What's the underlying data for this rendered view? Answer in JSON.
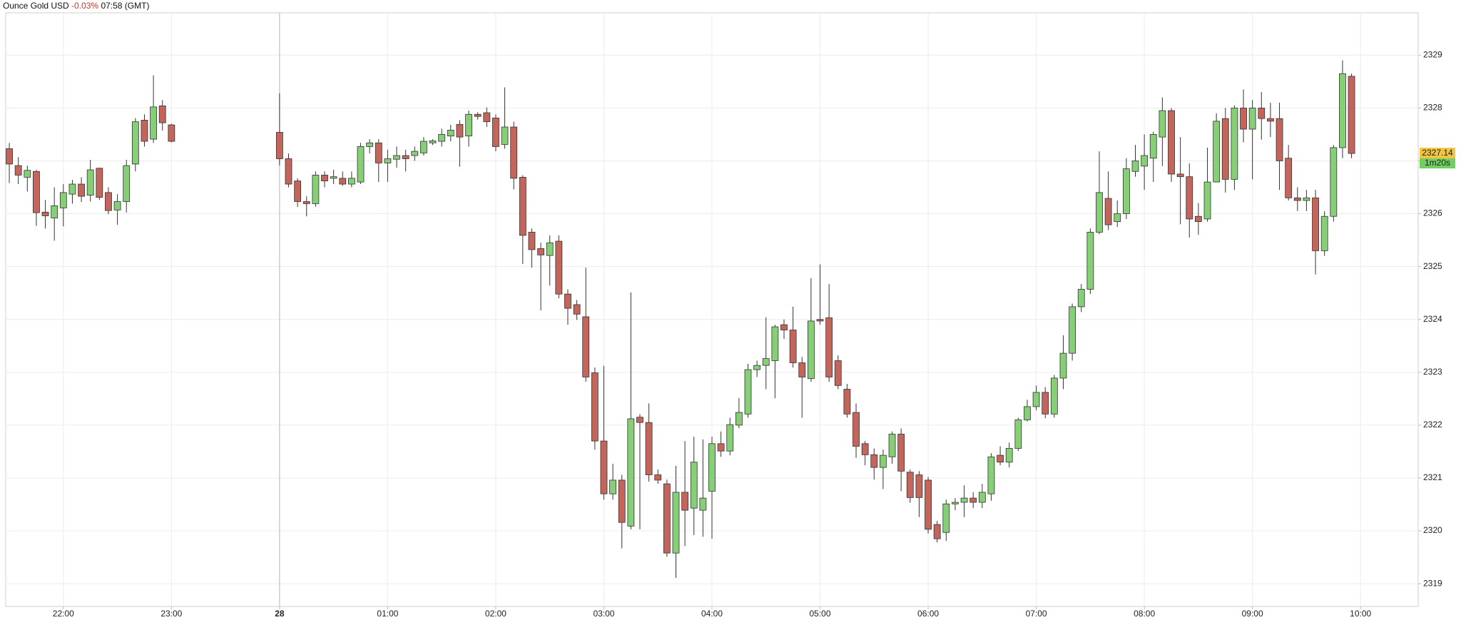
{
  "chart_data": {
    "type": "candlestick",
    "title": "Ounce Gold USD",
    "change": "-0.03%",
    "time": "07:58 (GMT)",
    "up_color": "#86cf76",
    "down_color": "#c4655c",
    "grid": true,
    "xlim": [
      "21:28",
      "10:32"
    ],
    "xticks": [
      "22:00",
      "23:00",
      {
        "value": "00:00",
        "label": "28"
      },
      "01:00",
      "02:00",
      "03:00",
      "04:00",
      "05:00",
      "06:00",
      "07:00",
      "08:00",
      "09:00",
      "10:00"
    ],
    "ylim": [
      2318.57,
      2329.8
    ],
    "yticks": [
      2319,
      2320,
      2321,
      2322,
      2323,
      2324,
      2325,
      2326,
      2327,
      2328,
      2329
    ],
    "last_price": 2327.14,
    "countdown": "1m20s",
    "x": [
      "21:30",
      "21:35",
      "21:40",
      "21:45",
      "21:50",
      "21:55",
      "22:00",
      "22:05",
      "22:10",
      "22:15",
      "22:20",
      "22:25",
      "22:30",
      "22:35",
      "22:40",
      "22:45",
      "22:50",
      "22:55",
      "23:00",
      "00:00",
      "00:05",
      "00:10",
      "00:15",
      "00:20",
      "00:25",
      "00:30",
      "00:35",
      "00:40",
      "00:45",
      "00:50",
      "00:55",
      "01:00",
      "01:05",
      "01:10",
      "01:15",
      "01:20",
      "01:25",
      "01:30",
      "01:35",
      "01:40",
      "01:45",
      "01:50",
      "01:55",
      "02:00",
      "02:05",
      "02:10",
      "02:15",
      "02:20",
      "02:25",
      "02:30",
      "02:35",
      "02:40",
      "02:45",
      "02:50",
      "02:55",
      "03:00",
      "03:05",
      "03:10",
      "03:15",
      "03:20",
      "03:25",
      "03:30",
      "03:35",
      "03:40",
      "03:45",
      "03:50",
      "03:55",
      "04:00",
      "04:05",
      "04:10",
      "04:15",
      "04:20",
      "04:25",
      "04:30",
      "04:35",
      "04:40",
      "04:45",
      "04:50",
      "04:55",
      "05:00",
      "05:05",
      "05:10",
      "05:15",
      "05:20",
      "05:25",
      "05:30",
      "05:35",
      "05:40",
      "05:45",
      "05:50",
      "05:55",
      "06:00",
      "06:05",
      "06:10",
      "06:15",
      "06:20",
      "06:25",
      "06:30",
      "06:35",
      "06:40",
      "06:45",
      "06:50",
      "06:55",
      "07:00",
      "07:05",
      "07:10",
      "07:15",
      "07:20",
      "07:25",
      "07:30",
      "07:35",
      "07:40",
      "07:45",
      "07:50",
      "07:55",
      "08:00",
      "08:05",
      "08:10",
      "08:15",
      "08:20",
      "08:25",
      "08:30",
      "08:35",
      "08:40",
      "08:45",
      "08:50",
      "08:55",
      "09:00",
      "09:05",
      "09:10",
      "09:15",
      "09:20",
      "09:25",
      "09:30",
      "09:35",
      "09:40",
      "09:45",
      "09:50",
      "09:55"
    ],
    "open": [
      2327.23,
      2326.91,
      2326.69,
      2326.8,
      2326.03,
      2325.92,
      2326.11,
      2326.37,
      2326.56,
      2326.35,
      2326.86,
      2326.4,
      2326.07,
      2326.23,
      2326.94,
      2327.77,
      2327.41,
      2328.04,
      2327.68,
      2327.54,
      2327.04,
      2326.62,
      2326.23,
      2326.19,
      2326.73,
      2326.67,
      2326.67,
      2326.56,
      2326.6,
      2327.27,
      2327.34,
      2326.96,
      2327.03,
      2327.1,
      2327.1,
      2327.15,
      2327.34,
      2327.37,
      2327.47,
      2327.69,
      2327.47,
      2327.88,
      2327.91,
      2327.81,
      2327.31,
      2327.64,
      2326.69,
      2325.65,
      2325.34,
      2325.21,
      2325.48,
      2324.48,
      2324.28,
      2324.05,
      2322.99,
      2321.7,
      2320.7,
      2320.96,
      2320.09,
      2322.15,
      2322.05,
      2321.06,
      2320.89,
      2319.58,
      2320.73,
      2320.43,
      2320.39,
      2320.75,
      2321.65,
      2321.51,
      2322.0,
      2322.21,
      2323.05,
      2323.13,
      2323.22,
      2323.9,
      2323.8,
      2323.18,
      2322.88,
      2324.0,
      2324.03,
      2323.22,
      2322.68,
      2322.24,
      2321.65,
      2321.44,
      2321.2,
      2321.4,
      2321.83,
      2321.11,
      2321.06,
      2320.96,
      2320.12,
      2319.97,
      2320.51,
      2320.54,
      2320.62,
      2320.54,
      2320.7,
      2321.43,
      2321.3,
      2321.56,
      2322.1,
      2322.35,
      2322.62,
      2322.21,
      2322.89,
      2323.36,
      2324.24,
      2324.57,
      2325.65,
      2326.29,
      2325.85,
      2326.0,
      2326.8,
      2326.9,
      2327.05,
      2327.45,
      2327.95,
      2326.75,
      2326.7,
      2325.95,
      2325.9,
      2326.6,
      2327.8,
      2326.65,
      2328.0,
      2327.6,
      2328.0,
      2327.8,
      2327.8,
      2327.05,
      2326.3,
      2326.25,
      2326.3,
      2325.3,
      2325.95,
      2327.25,
      2328.6
    ],
    "high": [
      2327.34,
      2327.07,
      2326.91,
      2326.83,
      2326.26,
      2326.5,
      2326.56,
      2326.64,
      2326.69,
      2327.02,
      2326.87,
      2326.5,
      2326.37,
      2327.02,
      2327.81,
      2327.88,
      2328.62,
      2328.15,
      2327.7,
      2328.28,
      2327.14,
      2326.67,
      2326.33,
      2326.8,
      2326.8,
      2326.83,
      2326.8,
      2326.8,
      2327.34,
      2327.41,
      2327.41,
      2327.21,
      2327.27,
      2327.21,
      2327.27,
      2327.45,
      2327.41,
      2327.61,
      2327.68,
      2327.77,
      2327.95,
      2327.92,
      2328.01,
      2327.88,
      2328.39,
      2327.74,
      2326.73,
      2325.72,
      2325.45,
      2325.59,
      2325.59,
      2324.57,
      2324.37,
      2324.98,
      2323.09,
      2323.12,
      2321.27,
      2321.06,
      2324.51,
      2322.21,
      2322.41,
      2321.16,
      2320.97,
      2321.23,
      2321.7,
      2321.78,
      2321.73,
      2321.78,
      2321.88,
      2322.14,
      2322.51,
      2323.16,
      2323.22,
      2324.04,
      2323.9,
      2324.0,
      2324.24,
      2323.29,
      2324.78,
      2325.04,
      2324.67,
      2323.32,
      2322.78,
      2322.41,
      2321.7,
      2321.56,
      2321.54,
      2321.88,
      2321.94,
      2321.16,
      2321.13,
      2321.02,
      2320.19,
      2320.59,
      2320.62,
      2320.86,
      2320.73,
      2320.89,
      2321.47,
      2321.6,
      2321.67,
      2322.14,
      2322.48,
      2322.75,
      2322.72,
      2322.95,
      2323.7,
      2324.3,
      2324.67,
      2325.72,
      2327.18,
      2326.8,
      2326.25,
      2327.05,
      2327.3,
      2327.5,
      2327.55,
      2328.2,
      2328.0,
      2327.45,
      2326.95,
      2326.2,
      2327.25,
      2327.9,
      2328.0,
      2328.05,
      2328.35,
      2328.15,
      2328.3,
      2328.1,
      2328.1,
      2327.3,
      2326.5,
      2326.45,
      2326.45,
      2326.05,
      2327.3,
      2328.9,
      2328.65
    ],
    "low": [
      2326.58,
      2326.56,
      2326.42,
      2325.77,
      2325.72,
      2325.49,
      2325.76,
      2326.19,
      2326.22,
      2326.23,
      2326.26,
      2325.99,
      2325.79,
      2326.02,
      2326.8,
      2327.27,
      2327.34,
      2327.57,
      2327.35,
      2326.91,
      2326.5,
      2326.13,
      2325.95,
      2326.13,
      2326.5,
      2326.56,
      2326.53,
      2326.5,
      2326.56,
      2327.14,
      2326.6,
      2326.6,
      2326.87,
      2326.8,
      2327.0,
      2327.1,
      2327.3,
      2327.27,
      2327.37,
      2326.89,
      2327.27,
      2327.78,
      2327.64,
      2327.18,
      2327.23,
      2326.46,
      2325.05,
      2324.98,
      2324.17,
      2324.64,
      2324.4,
      2323.9,
      2323.99,
      2322.82,
      2321.54,
      2320.59,
      2320.59,
      2319.67,
      2320.03,
      2320.03,
      2320.93,
      2320.89,
      2319.51,
      2319.11,
      2319.71,
      2319.92,
      2319.89,
      2319.85,
      2321.4,
      2321.43,
      2321.94,
      2322.14,
      2322.91,
      2322.68,
      2322.51,
      2323.63,
      2323.09,
      2322.14,
      2322.82,
      2323.9,
      2322.82,
      2322.68,
      2322.14,
      2321.38,
      2321.24,
      2320.97,
      2320.79,
      2321.27,
      2320.75,
      2320.53,
      2320.26,
      2319.95,
      2319.78,
      2319.81,
      2320.39,
      2320.26,
      2320.43,
      2320.43,
      2320.57,
      2321.24,
      2321.2,
      2321.51,
      2322.07,
      2322.28,
      2322.13,
      2322.14,
      2322.68,
      2323.22,
      2324.14,
      2324.48,
      2325.61,
      2325.69,
      2325.75,
      2325.9,
      2326.7,
      2326.45,
      2326.6,
      2326.9,
      2326.6,
      2325.8,
      2325.55,
      2325.6,
      2325.85,
      2326.6,
      2326.4,
      2326.45,
      2327.35,
      2326.65,
      2327.4,
      2327.45,
      2326.45,
      2326.25,
      2326.05,
      2326.05,
      2324.85,
      2325.2,
      2325.85,
      2327.05,
      2327.05
    ],
    "close": [
      2326.94,
      2326.73,
      2326.82,
      2326.02,
      2325.96,
      2326.15,
      2326.4,
      2326.56,
      2326.33,
      2326.83,
      2326.31,
      2326.06,
      2326.23,
      2326.91,
      2327.74,
      2327.37,
      2328.02,
      2327.72,
      2327.37,
      2327.04,
      2326.56,
      2326.23,
      2326.19,
      2326.73,
      2326.62,
      2326.7,
      2326.56,
      2326.67,
      2327.27,
      2327.34,
      2326.96,
      2327.04,
      2327.1,
      2327.04,
      2327.18,
      2327.37,
      2327.38,
      2327.5,
      2327.58,
      2327.45,
      2327.88,
      2327.84,
      2327.74,
      2327.27,
      2327.64,
      2326.67,
      2325.59,
      2325.32,
      2325.22,
      2325.45,
      2324.48,
      2324.21,
      2324.1,
      2322.91,
      2321.7,
      2320.7,
      2320.96,
      2320.16,
      2322.12,
      2322.05,
      2321.06,
      2320.96,
      2319.58,
      2320.73,
      2320.39,
      2321.3,
      2320.62,
      2321.65,
      2321.51,
      2322.01,
      2322.24,
      2323.05,
      2323.13,
      2323.26,
      2323.86,
      2323.8,
      2323.18,
      2322.91,
      2323.97,
      2323.97,
      2322.91,
      2322.75,
      2322.21,
      2321.6,
      2321.44,
      2321.2,
      2321.43,
      2321.83,
      2321.13,
      2320.63,
      2320.63,
      2320.03,
      2319.85,
      2320.51,
      2320.54,
      2320.62,
      2320.54,
      2320.73,
      2321.4,
      2321.3,
      2321.56,
      2322.1,
      2322.35,
      2322.62,
      2322.21,
      2322.89,
      2323.36,
      2324.24,
      2324.57,
      2325.65,
      2326.4,
      2325.79,
      2326.0,
      2326.85,
      2327.0,
      2327.1,
      2327.5,
      2327.95,
      2326.75,
      2326.7,
      2325.9,
      2325.85,
      2326.6,
      2327.75,
      2326.65,
      2328.0,
      2327.6,
      2328.0,
      2327.8,
      2327.75,
      2327.0,
      2326.3,
      2326.25,
      2326.3,
      2325.3,
      2325.95,
      2327.25,
      2328.65,
      2327.14
    ]
  }
}
